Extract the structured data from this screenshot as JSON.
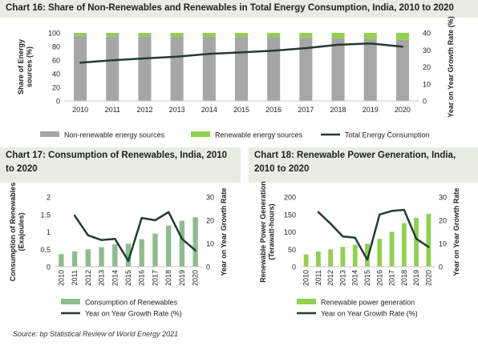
{
  "colors": {
    "header_bg": "#e7ede2",
    "non_renewable": "#a6a6a6",
    "renewable_light": "#92d050",
    "renewable_dark": "#8fbc8f",
    "line": "#253a33"
  },
  "source": "Source: bp Statistical Review of World Energy 2021",
  "chart_data": [
    {
      "id": "chart16",
      "type": "bar",
      "title": "Chart 16: Share of Non-Renewables and Renewables in Total Energy Consumption, India, 2010 to 2020",
      "categories": [
        "2010",
        "2011",
        "2012",
        "2013",
        "2014",
        "2015",
        "2016",
        "2017",
        "2018",
        "2019",
        "2020"
      ],
      "ylabel": "Share of Energy sources (%)",
      "y2label": "Year on Year Growth Rate (%)",
      "ylim": [
        0,
        100
      ],
      "y2lim": [
        0,
        40
      ],
      "yticks": [
        0,
        20,
        40,
        60,
        80,
        100
      ],
      "y2ticks": [
        0,
        10,
        20,
        30,
        40
      ],
      "stacked": true,
      "series": [
        {
          "name": "Non-renewable energy sources",
          "type": "bar",
          "axis": "left",
          "values": [
            95.5,
            95.1,
            95.0,
            94.6,
            94.2,
            94.1,
            93.5,
            93.0,
            92.2,
            91.3,
            89.6
          ]
        },
        {
          "name": "Renewable energy sources",
          "type": "bar",
          "axis": "left",
          "values": [
            4.5,
            4.9,
            5.0,
            5.4,
            5.8,
            5.9,
            6.5,
            7.0,
            7.8,
            8.7,
            10.4
          ]
        },
        {
          "name": "Total Energy Consumption",
          "type": "line",
          "axis": "right",
          "values": [
            22.5,
            23.9,
            25.0,
            26.0,
            27.6,
            28.5,
            29.5,
            31.0,
            33.0,
            33.8,
            31.9
          ]
        }
      ],
      "legend": "bottom"
    },
    {
      "id": "chart17",
      "type": "bar",
      "title": "Chart 17: Consumption of Renewables, India, 2010 to 2020",
      "categories": [
        "2010",
        "2011",
        "2012",
        "2013",
        "2014",
        "2015",
        "2016",
        "2017",
        "2018",
        "2019",
        "2020"
      ],
      "ylabel": "Consumption of Renewables (Exajoules)",
      "y2label": "Year on Year Growth Rate",
      "ylim": [
        0,
        2
      ],
      "y2lim": [
        0,
        30
      ],
      "yticks": [
        0,
        0.5,
        1,
        1.5,
        2
      ],
      "ytick_labels": [
        "0",
        "0.5",
        "1",
        "1.5",
        "2"
      ],
      "y2ticks": [
        0,
        10,
        20,
        30
      ],
      "series": [
        {
          "name": "Consumption of Renewables",
          "type": "bar",
          "axis": "left",
          "values": [
            0.36,
            0.44,
            0.5,
            0.56,
            0.64,
            0.66,
            0.79,
            0.95,
            1.18,
            1.32,
            1.42
          ]
        },
        {
          "name": "Year on Year Growth Rate (%)",
          "type": "line",
          "axis": "right",
          "values": [
            null,
            22.0,
            13.5,
            11.5,
            12.0,
            2.5,
            21.0,
            20.0,
            23.5,
            12.0,
            7.0
          ]
        }
      ],
      "legend": "bottom"
    },
    {
      "id": "chart18",
      "type": "bar",
      "title": "Chart 18: Renewable Power Generation, India, 2010 to 2020",
      "categories": [
        "2010",
        "2011",
        "2012",
        "2013",
        "2014",
        "2015",
        "2016",
        "2017",
        "2018",
        "2019",
        "2020"
      ],
      "ylabel": "Renewable Power Generation (Terawatt-hours)",
      "y2label": "Year on Year Growth Rate",
      "ylim": [
        0,
        200
      ],
      "y2lim": [
        0,
        30
      ],
      "yticks": [
        0,
        50,
        100,
        150,
        200
      ],
      "y2ticks": [
        0,
        10,
        20,
        30
      ],
      "series": [
        {
          "name": "Renewable power generation",
          "type": "bar",
          "axis": "left",
          "values": [
            35,
            44,
            50,
            57,
            63,
            66,
            80,
            100,
            125,
            140,
            152
          ]
        },
        {
          "name": "Year on Year Growth Rate (%)",
          "type": "line",
          "axis": "right",
          "values": [
            null,
            23.5,
            18.5,
            13.0,
            12.5,
            3.0,
            22.5,
            24.0,
            24.5,
            12.0,
            8.5
          ]
        }
      ],
      "legend": "bottom"
    }
  ]
}
